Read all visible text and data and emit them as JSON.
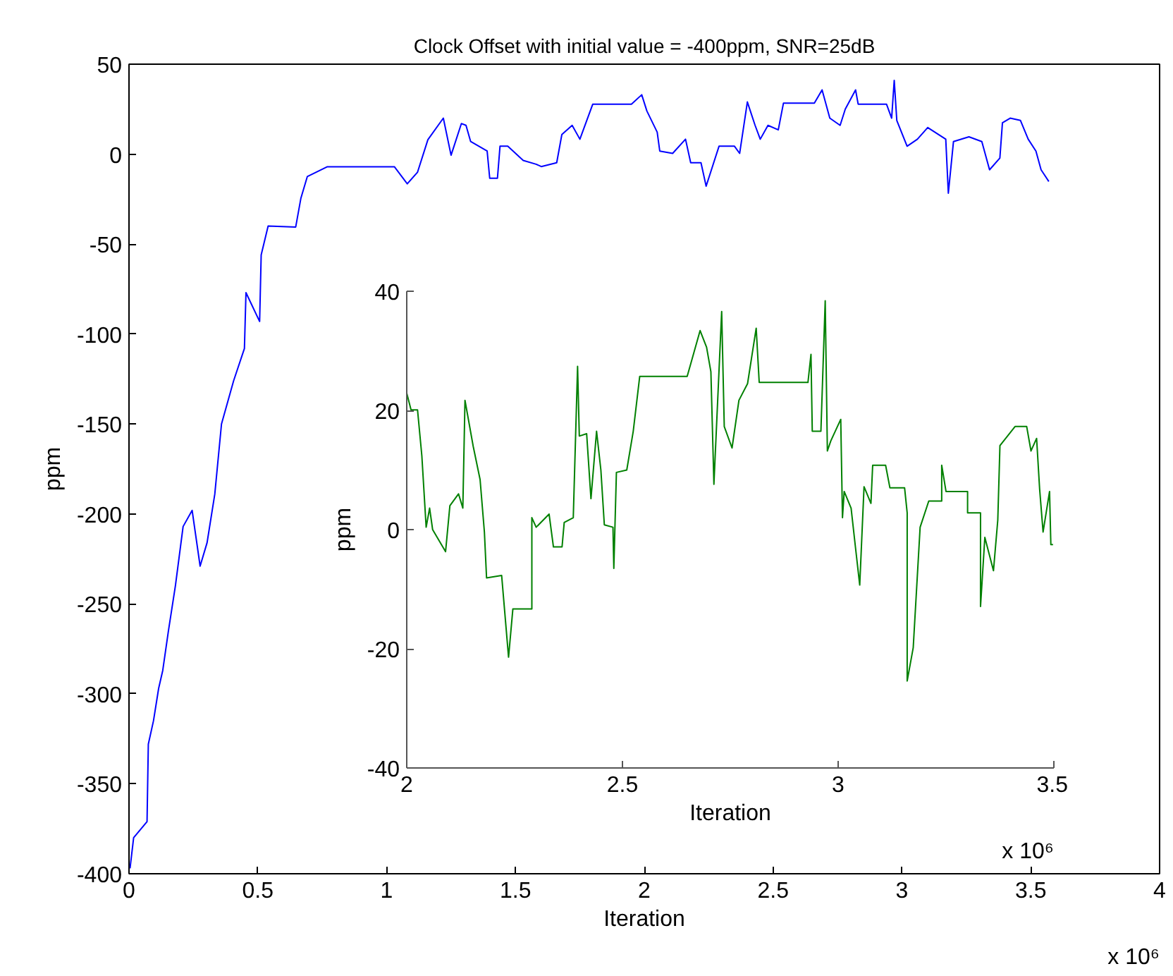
{
  "chart_data": [
    {
      "type": "line",
      "title": "Clock Offset with initial value = -400ppm, SNR=25dB",
      "xlabel": "Iteration",
      "ylabel": "ppm",
      "xlim": [
        0,
        4
      ],
      "ylim": [
        -400,
        50
      ],
      "xticks": [
        0,
        0.5,
        1,
        1.5,
        2,
        2.5,
        3,
        3.5,
        4
      ],
      "yticks": [
        -400,
        -350,
        -300,
        -250,
        -200,
        -150,
        -100,
        -50,
        0,
        50
      ],
      "annotations": [
        "x 10⁶"
      ],
      "series": [
        {
          "color": "#0000ff",
          "x": [
            0.004,
            0.018,
            0.07,
            0.075,
            0.095,
            0.115,
            0.131,
            0.153,
            0.18,
            0.21,
            0.245,
            0.276,
            0.303,
            0.333,
            0.359,
            0.406,
            0.448,
            0.454,
            0.507,
            0.513,
            0.54,
            0.647,
            0.667,
            0.692,
            0.77,
            1.03,
            1.08,
            1.12,
            1.16,
            1.22,
            1.25,
            1.29,
            1.308,
            1.326,
            1.39,
            1.4,
            1.43,
            1.44,
            1.47,
            1.53,
            1.58,
            1.6,
            1.66,
            1.68,
            1.72,
            1.75,
            1.8,
            1.95,
            1.99,
            2.01,
            2.05,
            2.06,
            2.11,
            2.16,
            2.18,
            2.22,
            2.24,
            2.29,
            2.35,
            2.37,
            2.4,
            2.43,
            2.45,
            2.48,
            2.52,
            2.54,
            2.66,
            2.69,
            2.72,
            2.76,
            2.78,
            2.82,
            2.83,
            2.94,
            2.96,
            2.97,
            2.98,
            3.02,
            3.06,
            3.1,
            3.17,
            3.18,
            3.2,
            3.26,
            3.31,
            3.34,
            3.38,
            3.39,
            3.42,
            3.46,
            3.49,
            3.52,
            3.54,
            3.57
          ],
          "values": [
            -397,
            -380,
            -371,
            -328,
            -315,
            -297,
            -287,
            -265,
            -240,
            -207,
            -198,
            -229,
            -216,
            -189,
            -150,
            -126,
            -108,
            -77,
            -93,
            -56,
            -40,
            -40.5,
            -24.6,
            -12.5,
            -7,
            -7,
            -16.5,
            -10,
            8,
            20,
            -0.6,
            17,
            16,
            7,
            1.7,
            -13.4,
            -13.4,
            4.4,
            4.4,
            -3.5,
            -5.6,
            -6.9,
            -4.8,
            10.9,
            16,
            8.3,
            27.8,
            27.8,
            33,
            24,
            12.2,
            1.7,
            0.4,
            8.3,
            -4.8,
            -4.8,
            -17.8,
            4.4,
            4.4,
            0.4,
            29,
            16,
            8.3,
            16,
            13.5,
            28.3,
            28.3,
            35.7,
            20,
            16,
            25,
            35.7,
            27.8,
            27.8,
            20,
            41,
            18.7,
            4.4,
            8.3,
            14.8,
            8.3,
            -21.7,
            7,
            9.6,
            7,
            -8.7,
            -2.2,
            17.4,
            20,
            18.7,
            8.3,
            1.7,
            -8.7,
            -15.2
          ]
        }
      ]
    },
    {
      "type": "line",
      "xlabel": "Iteration",
      "ylabel": "ppm",
      "xlim": [
        2,
        3.5
      ],
      "ylim": [
        -40,
        40
      ],
      "xticks": [
        2,
        2.5,
        3,
        3.5
      ],
      "yticks": [
        -40,
        -20,
        0,
        20,
        40
      ],
      "annotations": [
        "x 10⁶"
      ],
      "series": [
        {
          "color": "#008000",
          "x": [
            2.0,
            2.0,
            2.01,
            2.025,
            2.035,
            2.045,
            2.053,
            2.06,
            2.09,
            2.1,
            2.12,
            2.13,
            2.135,
            2.154,
            2.17,
            2.18,
            2.185,
            2.22,
            2.236,
            2.246,
            2.29,
            2.29,
            2.3,
            2.33,
            2.34,
            2.36,
            2.365,
            2.386,
            2.396,
            2.4,
            2.417,
            2.427,
            2.44,
            2.45,
            2.458,
            2.478,
            2.48,
            2.486,
            2.51,
            2.525,
            2.54,
            2.65,
            2.68,
            2.695,
            2.705,
            2.712,
            2.73,
            2.736,
            2.754,
            2.77,
            2.79,
            2.81,
            2.817,
            2.93,
            2.937,
            2.94,
            2.96,
            2.97,
            2.975,
            2.983,
            3.006,
            3.01,
            3.014,
            3.03,
            3.04,
            3.05,
            3.06,
            3.076,
            3.08,
            3.11,
            3.12,
            3.154,
            3.16,
            3.16,
            3.174,
            3.19,
            3.21,
            3.24,
            3.24,
            3.25,
            3.3,
            3.3,
            3.33,
            3.33,
            3.34,
            3.36,
            3.37,
            3.375,
            3.41,
            3.437,
            3.447,
            3.46,
            3.467,
            3.475,
            3.49,
            3.493,
            3.498
          ],
          "values": [
            29.4,
            22.9,
            20.1,
            20.1,
            12.4,
            0.4,
            3.6,
            0,
            -3.7,
            4,
            6,
            3.6,
            21.7,
            14,
            8.4,
            -0.4,
            -8.1,
            -7.7,
            -21.4,
            -13.3,
            -13.3,
            2,
            0.4,
            2.6,
            -2.9,
            -2.9,
            1.2,
            2,
            27.4,
            15.7,
            16.1,
            5.2,
            16.5,
            10,
            0.8,
            0.4,
            -6.5,
            9.6,
            10,
            16.5,
            25.7,
            25.7,
            33.4,
            30.6,
            26.5,
            7.6,
            36.6,
            17.3,
            13.7,
            21.7,
            24.5,
            33.8,
            24.7,
            24.7,
            29.4,
            16.5,
            16.5,
            38.4,
            13.2,
            14.9,
            18.5,
            2,
            6.4,
            3.6,
            -2.9,
            -9.3,
            7.2,
            4.4,
            10.8,
            10.8,
            7,
            7,
            2.8,
            -25.4,
            -19.8,
            0.4,
            4.8,
            4.8,
            10.8,
            6.4,
            6.4,
            2.8,
            2.8,
            -12.9,
            -1.3,
            -6.9,
            1.6,
            14.1,
            17.3,
            17.3,
            13.2,
            15.3,
            6.8,
            -0.4,
            6.4,
            -2.5,
            -2.5
          ]
        }
      ]
    }
  ]
}
